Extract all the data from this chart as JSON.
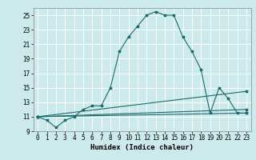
{
  "title": "",
  "xlabel": "Humidex (Indice chaleur)",
  "ylabel": "",
  "background_color": "#cce9eb",
  "grid_color": "#ffffff",
  "line_color": "#1a6b6b",
  "xlim": [
    -0.5,
    23.5
  ],
  "ylim": [
    9,
    26
  ],
  "xticks": [
    0,
    1,
    2,
    3,
    4,
    5,
    6,
    7,
    8,
    9,
    10,
    11,
    12,
    13,
    14,
    15,
    16,
    17,
    18,
    19,
    20,
    21,
    22,
    23
  ],
  "yticks": [
    9,
    11,
    13,
    15,
    17,
    19,
    21,
    23,
    25
  ],
  "line1_x": [
    0,
    1,
    2,
    3,
    4,
    5,
    6,
    7,
    8,
    9,
    10,
    11,
    12,
    13,
    14,
    15,
    16,
    17,
    18,
    19,
    20,
    21,
    22,
    23
  ],
  "line1_y": [
    11,
    10.5,
    9.5,
    10.5,
    11,
    12,
    12.5,
    12.5,
    15,
    20,
    22,
    23.5,
    25,
    25.5,
    25,
    25,
    22,
    20,
    17.5,
    11.5,
    15,
    13.5,
    11.5,
    11.5
  ],
  "line2_x": [
    0,
    23
  ],
  "line2_y": [
    11,
    11.5
  ],
  "line3_x": [
    0,
    23
  ],
  "line3_y": [
    11,
    14.5
  ],
  "line4_x": [
    0,
    23
  ],
  "line4_y": [
    11,
    12
  ]
}
